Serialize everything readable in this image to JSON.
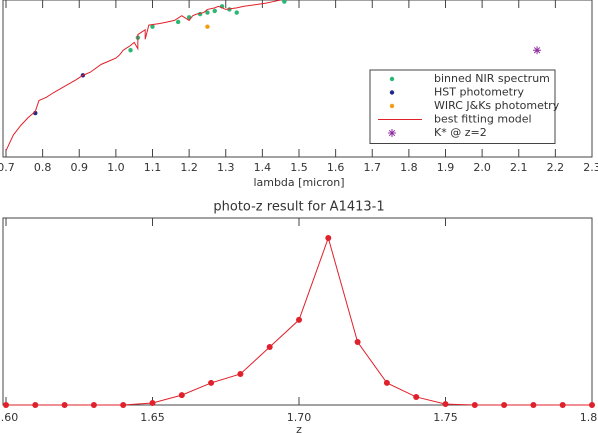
{
  "chart_data": [
    {
      "type": "line",
      "x_label": "lambda [micron]",
      "xlim": [
        0.7,
        2.3
      ],
      "ylim": [
        0,
        1
      ],
      "xticks": [
        {
          "value": 0.7,
          "label": "0.7"
        },
        {
          "value": 0.8,
          "label": "0.8"
        },
        {
          "value": 0.9,
          "label": "0.9"
        },
        {
          "value": 1.0,
          "label": "1.0"
        },
        {
          "value": 1.1,
          "label": "1.1"
        },
        {
          "value": 1.2,
          "label": "1.2"
        },
        {
          "value": 1.3,
          "label": "1.3"
        },
        {
          "value": 1.4,
          "label": "1.4"
        },
        {
          "value": 1.5,
          "label": "1.5"
        },
        {
          "value": 1.6,
          "label": "1.6"
        },
        {
          "value": 1.7,
          "label": "1.7"
        },
        {
          "value": 1.8,
          "label": "1.8"
        },
        {
          "value": 1.9,
          "label": "1.9"
        },
        {
          "value": 2.0,
          "label": "2.0"
        },
        {
          "value": 2.1,
          "label": "2.1"
        },
        {
          "value": 2.2,
          "label": "2.2"
        },
        {
          "value": 2.3,
          "label": "2.3"
        }
      ],
      "legend": "right",
      "series": [
        {
          "name": "binned NIR spectrum",
          "color": "#2bb673",
          "style": "points",
          "x": [
            1.04,
            1.06,
            1.1,
            1.17,
            1.2,
            1.23,
            1.25,
            1.27,
            1.29,
            1.31,
            1.33,
            1.46
          ],
          "values": [
            0.68,
            0.76,
            0.83,
            0.86,
            0.89,
            0.91,
            0.92,
            0.93,
            0.96,
            0.94,
            0.92,
            0.99
          ]
        },
        {
          "name": "HST photometry",
          "color": "#1f2a8c",
          "style": "points",
          "x": [
            0.78,
            0.91
          ],
          "values": [
            0.28,
            0.52
          ]
        },
        {
          "name": "WIRC J&Ks photometry",
          "color": "#f39c12",
          "style": "points",
          "x": [
            1.25
          ],
          "values": [
            0.83
          ]
        },
        {
          "name": "best fitting model",
          "color": "#e0202a",
          "style": "line",
          "x": [
            0.7,
            0.72,
            0.74,
            0.76,
            0.78,
            0.79,
            0.81,
            0.83,
            0.86,
            0.89,
            0.91,
            0.93,
            0.96,
            0.98,
            1.0,
            1.01,
            1.02,
            1.04,
            1.05,
            1.06,
            1.06,
            1.08,
            1.08,
            1.09,
            1.12,
            1.14,
            1.16,
            1.18,
            1.2,
            1.21,
            1.22,
            1.24,
            1.25,
            1.27,
            1.28,
            1.3,
            1.33,
            1.35,
            1.38,
            1.41,
            1.43,
            1.45
          ],
          "values": [
            0.04,
            0.14,
            0.2,
            0.25,
            0.29,
            0.36,
            0.38,
            0.41,
            0.45,
            0.49,
            0.52,
            0.54,
            0.59,
            0.61,
            0.63,
            0.65,
            0.68,
            0.71,
            0.73,
            0.69,
            0.78,
            0.81,
            0.75,
            0.84,
            0.85,
            0.86,
            0.87,
            0.9,
            0.87,
            0.9,
            0.91,
            0.92,
            0.94,
            0.95,
            0.96,
            0.94,
            0.95,
            0.96,
            0.97,
            0.98,
            0.99,
            1.0
          ]
        },
        {
          "name": "K* @ z=2",
          "color": "#8e2c9e",
          "style": "star",
          "x": [
            2.15
          ],
          "values": [
            0.68
          ]
        }
      ]
    },
    {
      "type": "line",
      "title": "photo-z result for A1413-1",
      "x_label": "z",
      "xlim": [
        1.6,
        1.8
      ],
      "ylim": [
        0,
        1
      ],
      "xticks": [
        {
          "value": 1.6,
          "label": "1.60"
        },
        {
          "value": 1.65,
          "label": "1.65"
        },
        {
          "value": 1.7,
          "label": "1.70"
        },
        {
          "value": 1.75,
          "label": "1.75"
        },
        {
          "value": 1.8,
          "label": "1.80"
        }
      ],
      "series": [
        {
          "color": "#e0202a",
          "style": "linepoints",
          "x": [
            1.6,
            1.61,
            1.62,
            1.63,
            1.64,
            1.65,
            1.66,
            1.67,
            1.68,
            1.69,
            1.7,
            1.71,
            1.72,
            1.73,
            1.74,
            1.75,
            1.76,
            1.77,
            1.78,
            1.79,
            1.8
          ],
          "values": [
            0,
            0,
            0,
            0,
            0,
            0.011,
            0.053,
            0.118,
            0.166,
            0.31,
            0.455,
            0.893,
            0.337,
            0.118,
            0.043,
            0.005,
            0,
            0,
            0,
            0,
            0
          ]
        }
      ]
    }
  ]
}
